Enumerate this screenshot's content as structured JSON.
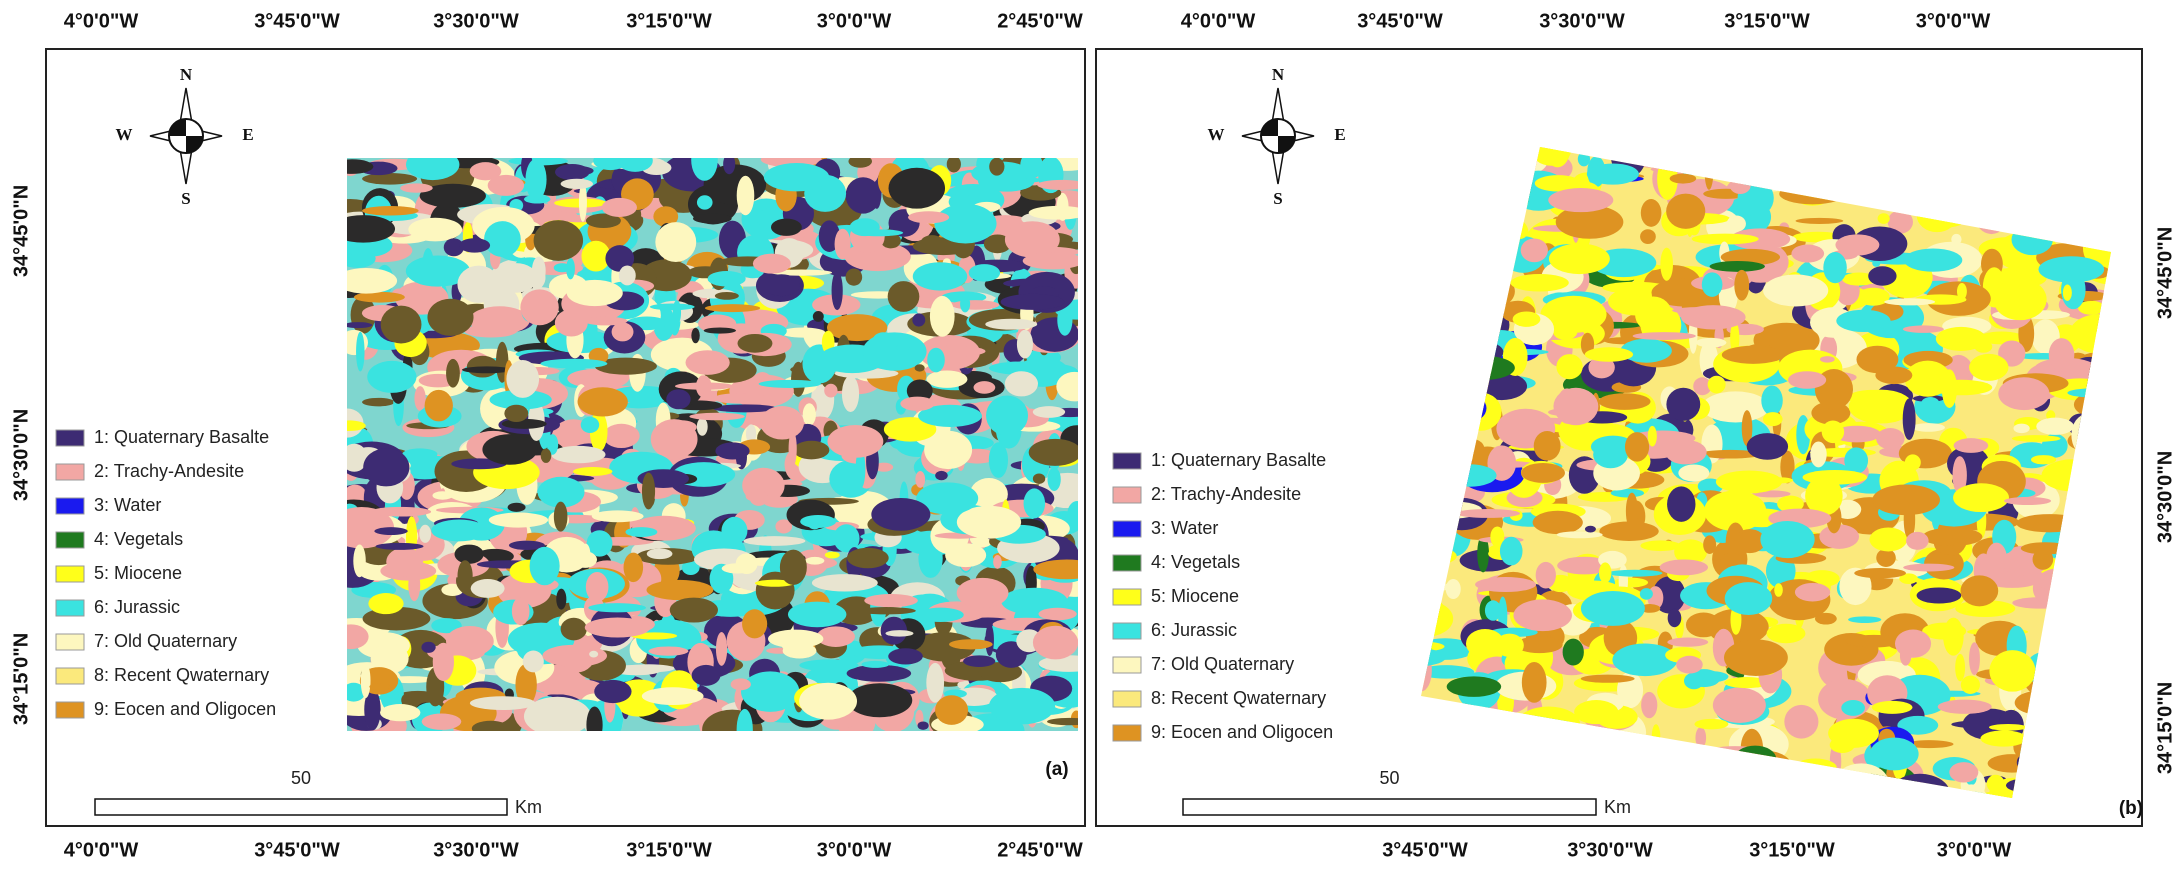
{
  "panels": [
    {
      "label": "(a)",
      "top_ticks": [
        "4°0'0\"W",
        "3°45'0\"W",
        "3°30'0\"W",
        "3°15'0\"W",
        "3°0'0\"W",
        "2°45'0\"W"
      ],
      "bottom_ticks": [
        "4°0'0\"W",
        "3°45'0\"W",
        "3°30'0\"W",
        "3°15'0\"W",
        "3°0'0\"W",
        "2°45'0\"W"
      ],
      "side_ticks": [
        "34°45'0\"N",
        "34°30'0\"N",
        "34°15'0\"N"
      ],
      "compass": {
        "n": "N",
        "s": "S",
        "w": "W",
        "e": "E"
      },
      "scale": {
        "distance": "50",
        "unit": "Km"
      },
      "legend": [
        {
          "text": "1: Quaternary Basalte",
          "color": "#3d2b73"
        },
        {
          "text": "2: Trachy-Andesite",
          "color": "#f2a7a4"
        },
        {
          "text": "3: Water",
          "color": "#1a1aef"
        },
        {
          "text": "4: Vegetals",
          "color": "#1f7a1f"
        },
        {
          "text": "5: Miocene",
          "color": "#ffff1a"
        },
        {
          "text": "6: Jurassic",
          "color": "#3ae3e0"
        },
        {
          "text": "7: Old Quaternary",
          "color": "#fdf7bf"
        },
        {
          "text": "8: Recent Qwaternary",
          "color": "#fbe97c"
        },
        {
          "text": "9: Eocen and Oligocen",
          "color": "#de9322"
        }
      ]
    },
    {
      "label": "(b)",
      "top_ticks": [
        "4°0'0\"W",
        "3°45'0\"W",
        "3°30'0\"W",
        "3°15'0\"W",
        "3°0'0\"W"
      ],
      "bottom_ticks": [
        "3°45'0\"W",
        "3°30'0\"W",
        "3°15'0\"W",
        "3°0'0\"W"
      ],
      "side_ticks": [
        "34°45'0\"N",
        "34°30'0\"N",
        "34°15'0\"N"
      ],
      "compass": {
        "n": "N",
        "s": "S",
        "w": "W",
        "e": "E"
      },
      "scale": {
        "distance": "50",
        "unit": "Km"
      },
      "legend": [
        {
          "text": "1: Quaternary Basalte",
          "color": "#3d2b73"
        },
        {
          "text": "2: Trachy-Andesite",
          "color": "#f2a7a4"
        },
        {
          "text": "3: Water",
          "color": "#1a1aef"
        },
        {
          "text": "4: Vegetals",
          "color": "#1f7a1f"
        },
        {
          "text": "5: Miocene",
          "color": "#ffff1a"
        },
        {
          "text": "6: Jurassic",
          "color": "#3ae3e0"
        },
        {
          "text": "7: Old Quaternary",
          "color": "#fdf7bf"
        },
        {
          "text": "8: Recent Qwaternary",
          "color": "#fbe97c"
        },
        {
          "text": "9: Eocen and Oligocen",
          "color": "#de9322"
        }
      ]
    }
  ]
}
